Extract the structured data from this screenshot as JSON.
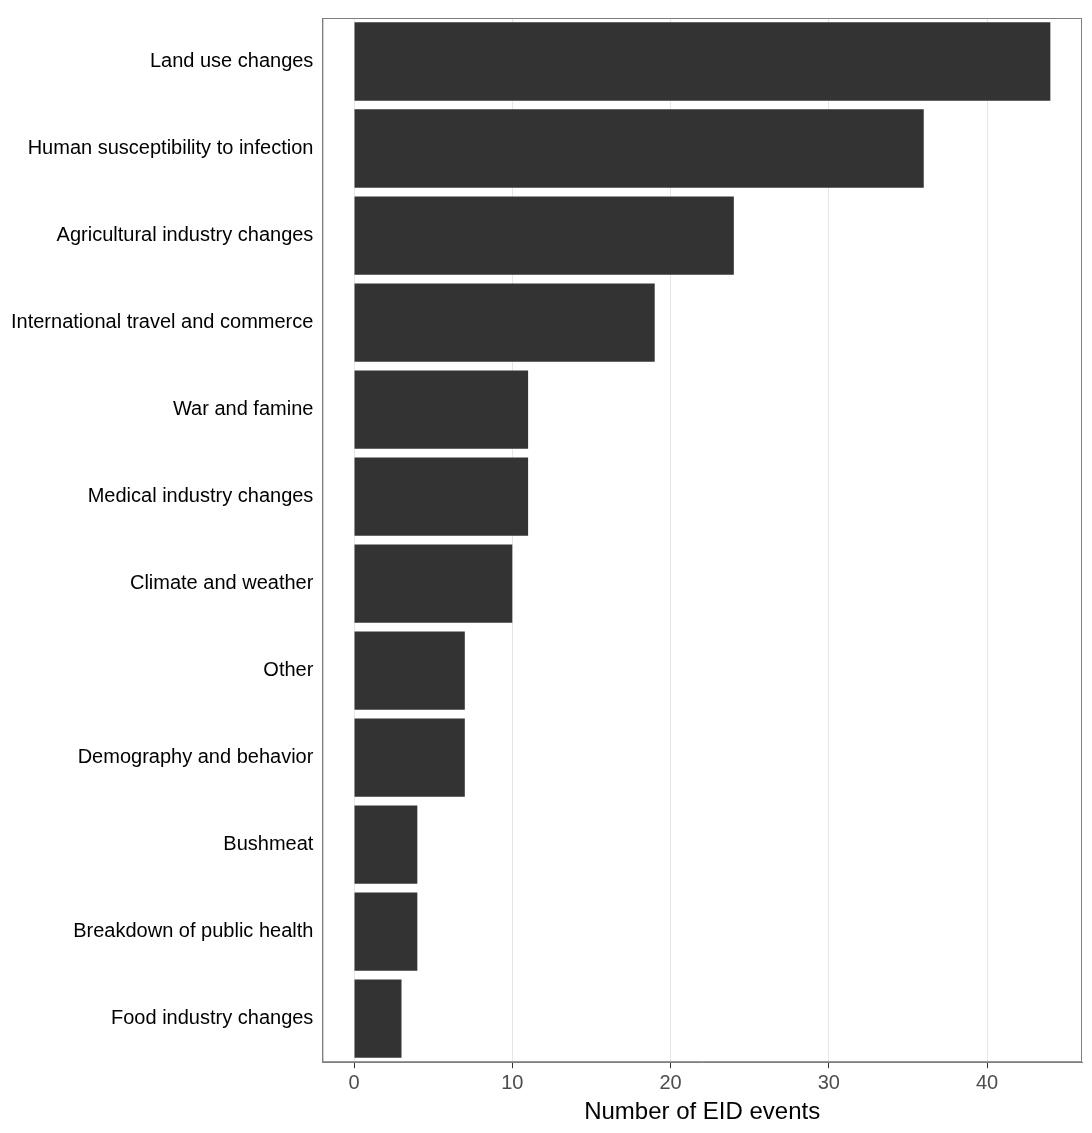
{
  "chart_data": {
    "type": "bar",
    "orientation": "horizontal",
    "x_label": "Number of EID events",
    "categories": [
      "Land use changes",
      "Human susceptibility to infection",
      "Agricultural industry changes",
      "International travel and commerce",
      "War and famine",
      "Medical industry changes",
      "Climate and weather",
      "Other",
      "Demography and behavior",
      "Bushmeat",
      "Breakdown of public health",
      "Food industry changes"
    ],
    "values": [
      44,
      36,
      24,
      19,
      11,
      11,
      10,
      7,
      7,
      4,
      4,
      3
    ],
    "color": "#333333",
    "xlim": [
      -2,
      46
    ],
    "xticks": [
      0,
      10,
      20,
      30,
      40
    ],
    "grid": true
  }
}
